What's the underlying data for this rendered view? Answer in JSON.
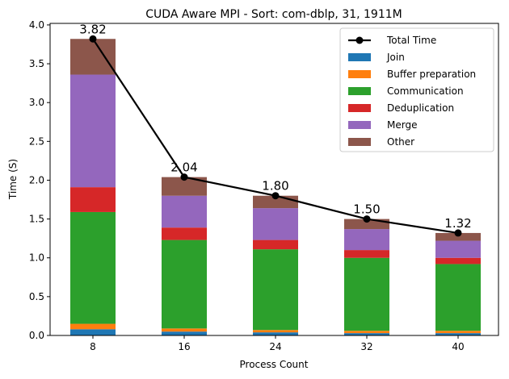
{
  "chart_data": {
    "type": "bar",
    "stacked": true,
    "title": "CUDA Aware MPI - Sort: com-dblp, 31, 1911M",
    "xlabel": "Process Count",
    "ylabel": "Time (S)",
    "categories": [
      "8",
      "16",
      "24",
      "32",
      "40"
    ],
    "ylim": [
      0,
      4.02
    ],
    "yticks": [
      0.0,
      0.5,
      1.0,
      1.5,
      2.0,
      2.5,
      3.0,
      3.5,
      4.0
    ],
    "ytick_labels": [
      "0.0",
      "0.5",
      "1.0",
      "1.5",
      "2.0",
      "2.5",
      "3.0",
      "3.5",
      "4.0"
    ],
    "grid": false,
    "legend_position": "top-right",
    "series": [
      {
        "name": "Join",
        "color": "#1f77b4",
        "values": [
          0.08,
          0.05,
          0.04,
          0.03,
          0.03
        ]
      },
      {
        "name": "Buffer preparation",
        "color": "#ff7f0e",
        "values": [
          0.07,
          0.04,
          0.03,
          0.03,
          0.03
        ]
      },
      {
        "name": "Communication",
        "color": "#2ca02c",
        "values": [
          1.44,
          1.14,
          1.04,
          0.94,
          0.86
        ]
      },
      {
        "name": "Deduplication",
        "color": "#d62728",
        "values": [
          0.32,
          0.16,
          0.12,
          0.1,
          0.08
        ]
      },
      {
        "name": "Merge",
        "color": "#9467bd",
        "values": [
          1.45,
          0.41,
          0.41,
          0.27,
          0.22
        ]
      },
      {
        "name": "Other",
        "color": "#8c564b",
        "values": [
          0.46,
          0.24,
          0.16,
          0.13,
          0.1
        ]
      }
    ],
    "line_series": {
      "name": "Total Time",
      "color": "#000000",
      "values": [
        3.82,
        2.04,
        1.8,
        1.5,
        1.32
      ],
      "labels": [
        "3.82",
        "2.04",
        "1.80",
        "1.50",
        "1.32"
      ]
    }
  }
}
